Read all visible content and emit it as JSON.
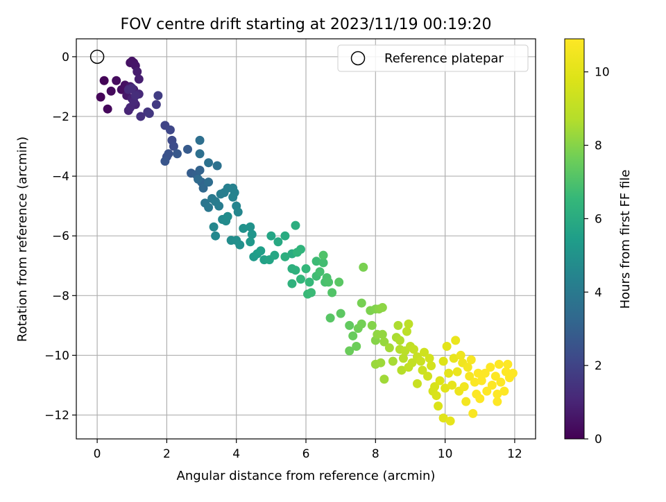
{
  "chart_data": {
    "type": "scatter",
    "title": "FOV centre drift starting at 2023/11/19 00:19:20",
    "xlabel": "Angular distance from reference (arcmin)",
    "ylabel": "Rotation from reference (arcmin)",
    "xlim": [
      -0.6,
      12.6
    ],
    "ylim": [
      -12.8,
      0.6
    ],
    "xticks": [
      0,
      2,
      4,
      6,
      8,
      10,
      12
    ],
    "yticks": [
      0,
      -2,
      -4,
      -6,
      -8,
      -10,
      -12
    ],
    "xtick_labels": [
      "0",
      "2",
      "4",
      "6",
      "8",
      "10",
      "12"
    ],
    "ytick_labels": [
      "0",
      "−2",
      "−4",
      "−6",
      "−8",
      "−10",
      "−12"
    ],
    "grid": true,
    "legend": {
      "placement": "upper-right",
      "entries": [
        "Reference platepar"
      ]
    },
    "reference_point": {
      "x": 0.0,
      "y": 0.0,
      "marker": "open-circle"
    },
    "colorbar": {
      "label": "Hours from first FF file",
      "colormap": "viridis",
      "range": [
        0,
        10.9
      ],
      "ticks": [
        0,
        2,
        4,
        6,
        8,
        10
      ],
      "tick_labels": [
        "0",
        "2",
        "4",
        "6",
        "8",
        "10"
      ]
    },
    "point_fields": [
      "x",
      "y",
      "hours"
    ],
    "points": [
      [
        0.2,
        -0.8,
        0.1
      ],
      [
        0.1,
        -1.35,
        0.15
      ],
      [
        0.3,
        -1.75,
        0.2
      ],
      [
        0.4,
        -1.15,
        0.25
      ],
      [
        0.55,
        -0.8,
        0.3
      ],
      [
        0.7,
        -1.1,
        0.35
      ],
      [
        0.8,
        -0.95,
        0.4
      ],
      [
        0.95,
        -0.2,
        0.45
      ],
      [
        1.0,
        -0.15,
        0.5
      ],
      [
        1.05,
        -0.2,
        0.55
      ],
      [
        1.1,
        -0.3,
        0.6
      ],
      [
        0.85,
        -1.3,
        0.65
      ],
      [
        0.95,
        -1.0,
        0.7
      ],
      [
        1.05,
        -1.1,
        0.75
      ],
      [
        1.15,
        -0.5,
        0.8
      ],
      [
        1.2,
        -0.75,
        0.85
      ],
      [
        1.0,
        -1.4,
        0.9
      ],
      [
        1.1,
        -1.6,
        0.95
      ],
      [
        0.9,
        -1.8,
        1.0
      ],
      [
        0.95,
        -1.7,
        1.05
      ],
      [
        1.05,
        -1.5,
        1.1
      ],
      [
        1.2,
        -1.25,
        1.15
      ],
      [
        0.9,
        -1.1,
        1.2
      ],
      [
        1.0,
        -1.05,
        1.25
      ],
      [
        1.1,
        -1.3,
        1.3
      ],
      [
        1.25,
        -2.0,
        1.4
      ],
      [
        1.45,
        -1.85,
        1.5
      ],
      [
        1.5,
        -1.9,
        1.6
      ],
      [
        1.7,
        -1.6,
        1.7
      ],
      [
        1.75,
        -1.3,
        1.8
      ],
      [
        1.95,
        -2.3,
        2.0
      ],
      [
        2.1,
        -2.45,
        2.1
      ],
      [
        2.15,
        -2.8,
        2.2
      ],
      [
        2.2,
        -3.0,
        2.3
      ],
      [
        2.0,
        -3.35,
        2.4
      ],
      [
        2.05,
        -3.25,
        2.5
      ],
      [
        1.95,
        -3.5,
        2.6
      ],
      [
        2.3,
        -3.25,
        2.7
      ],
      [
        2.6,
        -3.1,
        2.8
      ],
      [
        2.7,
        -3.9,
        2.9
      ],
      [
        2.85,
        -3.95,
        3.0
      ],
      [
        2.95,
        -3.8,
        3.1
      ],
      [
        3.0,
        -4.2,
        3.2
      ],
      [
        3.05,
        -4.4,
        3.3
      ],
      [
        2.9,
        -4.1,
        3.4
      ],
      [
        3.2,
        -4.2,
        3.5
      ],
      [
        2.95,
        -2.8,
        3.55
      ],
      [
        2.95,
        -3.25,
        3.6
      ],
      [
        3.2,
        -3.55,
        3.65
      ],
      [
        3.45,
        -3.65,
        3.7
      ],
      [
        3.1,
        -4.9,
        3.8
      ],
      [
        3.2,
        -5.05,
        3.9
      ],
      [
        3.3,
        -4.75,
        4.0
      ],
      [
        3.4,
        -4.85,
        4.05
      ],
      [
        3.5,
        -5.0,
        4.1
      ],
      [
        3.55,
        -4.6,
        4.15
      ],
      [
        3.65,
        -4.55,
        4.2
      ],
      [
        3.75,
        -4.4,
        4.25
      ],
      [
        3.9,
        -4.4,
        4.3
      ],
      [
        3.95,
        -4.55,
        4.35
      ],
      [
        3.9,
        -4.7,
        4.4
      ],
      [
        4.0,
        -5.0,
        4.45
      ],
      [
        4.05,
        -5.2,
        4.5
      ],
      [
        3.35,
        -5.7,
        4.55
      ],
      [
        3.4,
        -6.0,
        4.6
      ],
      [
        3.6,
        -5.45,
        4.65
      ],
      [
        3.7,
        -5.5,
        4.7
      ],
      [
        3.75,
        -5.35,
        4.75
      ],
      [
        3.85,
        -6.15,
        4.8
      ],
      [
        4.0,
        -6.15,
        4.85
      ],
      [
        4.1,
        -6.3,
        4.9
      ],
      [
        4.2,
        -5.75,
        4.95
      ],
      [
        4.4,
        -5.7,
        5.0
      ],
      [
        4.45,
        -5.95,
        5.1
      ],
      [
        4.4,
        -6.2,
        5.2
      ],
      [
        4.5,
        -6.7,
        5.3
      ],
      [
        4.6,
        -6.6,
        5.4
      ],
      [
        4.7,
        -6.5,
        5.5
      ],
      [
        4.8,
        -6.8,
        5.6
      ],
      [
        4.95,
        -6.8,
        5.7
      ],
      [
        5.0,
        -6.0,
        5.75
      ],
      [
        5.1,
        -6.65,
        5.8
      ],
      [
        5.2,
        -6.2,
        5.9
      ],
      [
        5.4,
        -6.0,
        6.0
      ],
      [
        5.6,
        -6.6,
        6.05
      ],
      [
        5.7,
        -5.65,
        6.1
      ],
      [
        5.4,
        -6.7,
        6.15
      ],
      [
        5.6,
        -7.1,
        6.2
      ],
      [
        5.7,
        -7.15,
        6.25
      ],
      [
        5.6,
        -7.6,
        6.3
      ],
      [
        5.85,
        -6.45,
        6.35
      ],
      [
        5.75,
        -6.55,
        6.4
      ],
      [
        5.85,
        -7.45,
        6.45
      ],
      [
        6.0,
        -7.1,
        6.5
      ],
      [
        6.1,
        -7.55,
        6.55
      ],
      [
        6.05,
        -7.95,
        6.6
      ],
      [
        6.15,
        -7.9,
        6.65
      ],
      [
        6.3,
        -6.85,
        6.7
      ],
      [
        6.3,
        -7.35,
        6.75
      ],
      [
        6.5,
        -6.9,
        6.8
      ],
      [
        6.4,
        -7.2,
        6.85
      ],
      [
        6.55,
        -7.55,
        6.9
      ],
      [
        6.6,
        -7.4,
        6.95
      ],
      [
        6.65,
        -7.55,
        7.0
      ],
      [
        6.5,
        -6.65,
        7.05
      ],
      [
        6.75,
        -7.9,
        7.1
      ],
      [
        6.7,
        -8.75,
        7.2
      ],
      [
        6.95,
        -7.55,
        7.25
      ],
      [
        7.0,
        -8.6,
        7.3
      ],
      [
        7.25,
        -9.0,
        7.4
      ],
      [
        7.35,
        -9.35,
        7.5
      ],
      [
        7.25,
        -9.85,
        7.55
      ],
      [
        7.45,
        -9.7,
        7.6
      ],
      [
        7.5,
        -9.1,
        7.65
      ],
      [
        7.6,
        -8.95,
        7.7
      ],
      [
        7.6,
        -8.25,
        7.75
      ],
      [
        7.65,
        -7.05,
        7.8
      ],
      [
        7.85,
        -8.5,
        7.85
      ],
      [
        8.0,
        -8.45,
        7.9
      ],
      [
        7.9,
        -9.0,
        7.95
      ],
      [
        8.0,
        -9.5,
        8.0
      ],
      [
        8.1,
        -8.45,
        8.05
      ],
      [
        8.2,
        -8.4,
        8.1
      ],
      [
        8.05,
        -9.3,
        8.15
      ],
      [
        8.2,
        -9.3,
        8.2
      ],
      [
        8.25,
        -9.55,
        8.25
      ],
      [
        8.0,
        -10.3,
        8.3
      ],
      [
        8.15,
        -10.25,
        8.35
      ],
      [
        8.25,
        -10.8,
        8.4
      ],
      [
        8.4,
        -9.75,
        8.45
      ],
      [
        8.5,
        -10.2,
        8.5
      ],
      [
        8.6,
        -9.4,
        8.55
      ],
      [
        8.65,
        -9.0,
        8.6
      ],
      [
        8.7,
        -9.5,
        8.65
      ],
      [
        8.7,
        -9.8,
        8.7
      ],
      [
        8.75,
        -10.5,
        8.75
      ],
      [
        8.8,
        -10.1,
        8.8
      ],
      [
        8.85,
        -9.85,
        8.85
      ],
      [
        8.9,
        -9.2,
        8.9
      ],
      [
        8.95,
        -8.95,
        8.95
      ],
      [
        9.0,
        -9.7,
        9.0
      ],
      [
        8.95,
        -10.4,
        9.05
      ],
      [
        9.05,
        -10.25,
        9.1
      ],
      [
        9.1,
        -9.8,
        9.15
      ],
      [
        9.2,
        -10.05,
        9.2
      ],
      [
        9.2,
        -10.95,
        9.25
      ],
      [
        9.3,
        -10.2,
        9.3
      ],
      [
        9.35,
        -10.5,
        9.35
      ],
      [
        9.4,
        -9.9,
        9.4
      ],
      [
        9.5,
        -10.7,
        9.45
      ],
      [
        9.55,
        -10.1,
        9.5
      ],
      [
        9.6,
        -10.35,
        9.55
      ],
      [
        9.65,
        -11.2,
        9.6
      ],
      [
        9.7,
        -11.05,
        9.65
      ],
      [
        9.75,
        -11.35,
        9.7
      ],
      [
        9.8,
        -11.7,
        9.75
      ],
      [
        9.85,
        -10.85,
        9.8
      ],
      [
        9.95,
        -10.2,
        9.85
      ],
      [
        9.95,
        -12.1,
        9.9
      ],
      [
        10.0,
        -11.1,
        9.95
      ],
      [
        10.05,
        -9.7,
        10.0
      ],
      [
        10.1,
        -10.6,
        10.05
      ],
      [
        10.15,
        -12.2,
        10.1
      ],
      [
        10.2,
        -11.0,
        10.15
      ],
      [
        10.25,
        -10.1,
        10.2
      ],
      [
        10.3,
        -9.5,
        10.25
      ],
      [
        10.35,
        -10.55,
        10.3
      ],
      [
        10.4,
        -11.2,
        10.35
      ],
      [
        10.45,
        -10.0,
        10.4
      ],
      [
        10.5,
        -10.25,
        10.45
      ],
      [
        10.55,
        -11.05,
        10.5
      ],
      [
        10.6,
        -11.55,
        10.55
      ],
      [
        10.65,
        -10.4,
        10.6
      ],
      [
        10.7,
        -10.7,
        10.65
      ],
      [
        10.75,
        -10.15,
        10.7
      ],
      [
        10.8,
        -11.95,
        10.75
      ],
      [
        10.85,
        -10.9,
        10.8
      ],
      [
        10.9,
        -11.3,
        10.85
      ],
      [
        10.95,
        -10.6,
        10.9
      ],
      [
        11.0,
        -11.45,
        10.9
      ],
      [
        11.05,
        -10.85,
        10.9
      ],
      [
        11.15,
        -10.6,
        10.9
      ],
      [
        11.2,
        -11.2,
        10.9
      ],
      [
        11.3,
        -10.4,
        10.9
      ],
      [
        11.35,
        -11.0,
        10.9
      ],
      [
        11.45,
        -10.7,
        10.9
      ],
      [
        11.5,
        -11.55,
        10.9
      ],
      [
        11.55,
        -10.3,
        10.9
      ],
      [
        11.6,
        -10.9,
        10.9
      ],
      [
        11.7,
        -11.2,
        10.9
      ],
      [
        11.75,
        -10.55,
        10.9
      ],
      [
        11.8,
        -10.3,
        10.9
      ],
      [
        11.85,
        -10.75,
        10.9
      ],
      [
        11.95,
        -10.6,
        10.9
      ],
      [
        11.5,
        -11.3,
        10.9
      ]
    ]
  }
}
